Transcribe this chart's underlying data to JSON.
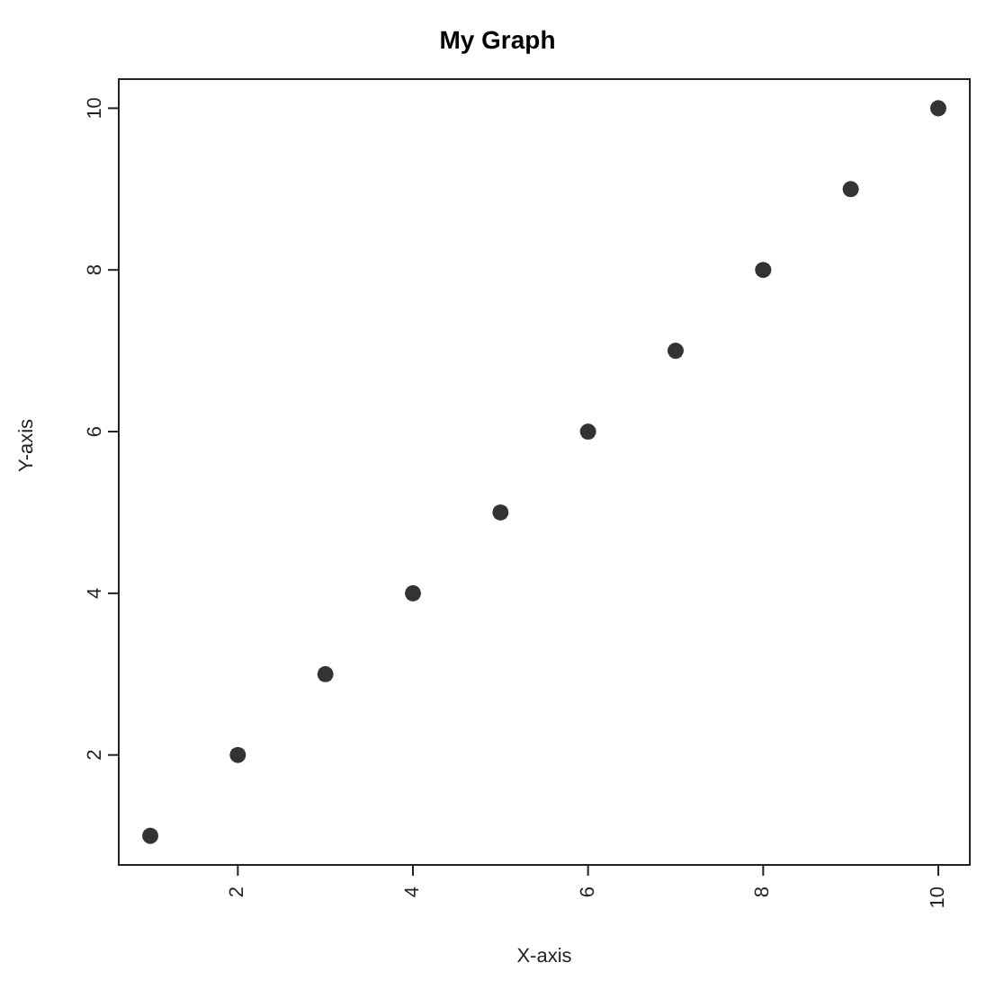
{
  "chart_data": {
    "type": "scatter",
    "title": "My Graph",
    "xlabel": "X-axis",
    "ylabel": "Y-axis",
    "x": [
      1,
      2,
      3,
      4,
      5,
      6,
      7,
      8,
      9,
      10
    ],
    "series": [
      {
        "color": "#333333",
        "values": [
          1,
          2,
          3,
          4,
          5,
          6,
          7,
          8,
          9,
          10
        ]
      }
    ],
    "xlim": [
      0.64,
      10.36
    ],
    "ylim": [
      0.64,
      10.36
    ],
    "xticks": [
      2,
      4,
      6,
      8,
      10
    ],
    "yticks": [
      2,
      4,
      6,
      8,
      10
    ],
    "marker": "circle",
    "grid": false,
    "legend": false
  }
}
